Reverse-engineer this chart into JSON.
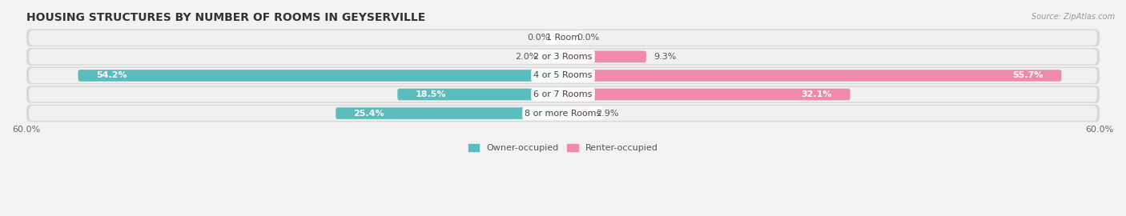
{
  "title": "HOUSING STRUCTURES BY NUMBER OF ROOMS IN GEYSERVILLE",
  "source": "Source: ZipAtlas.com",
  "categories": [
    "1 Room",
    "2 or 3 Rooms",
    "4 or 5 Rooms",
    "6 or 7 Rooms",
    "8 or more Rooms"
  ],
  "owner_values": [
    0.0,
    2.0,
    54.2,
    18.5,
    25.4
  ],
  "renter_values": [
    0.0,
    9.3,
    55.7,
    32.1,
    2.9
  ],
  "owner_color": "#5bbcbe",
  "renter_color": "#f08aab",
  "owner_label": "Owner-occupied",
  "renter_label": "Renter-occupied",
  "xlim": 60.0,
  "bar_height": 0.62,
  "title_fontsize": 10,
  "axis_fontsize": 8,
  "label_fontsize": 8,
  "category_fontsize": 8,
  "row_bg_color": "#e8e8e8",
  "row_inner_color": "#f5f5f5"
}
